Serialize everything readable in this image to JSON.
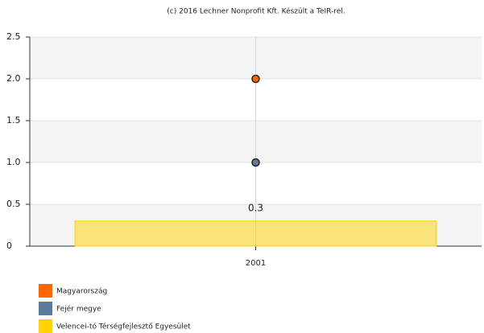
{
  "chart_data": {
    "type": "combo",
    "title": "(c) 2016 Lechner Nonprofit Kft. Készült a TeIR-rel.",
    "categories": [
      "2001"
    ],
    "series": [
      {
        "name": "Magyarország",
        "color": "#ff6600",
        "type": "scatter",
        "values": [
          2.0
        ]
      },
      {
        "name": "Fejér megye",
        "color": "#5b7b9c",
        "type": "scatter",
        "values": [
          1.0
        ]
      },
      {
        "name": "Velencei-tó Térségfejlesztő Egyesület",
        "color": "#ffd200",
        "type": "bar",
        "values": [
          0.3
        ]
      }
    ],
    "ylim": [
      0,
      2.5
    ],
    "yticks": [
      0,
      0.5,
      {
        "value": 1,
        "label": "1.0"
      },
      1.5,
      {
        "value": 2,
        "label": "2.0"
      },
      2.5
    ],
    "grid": true
  }
}
